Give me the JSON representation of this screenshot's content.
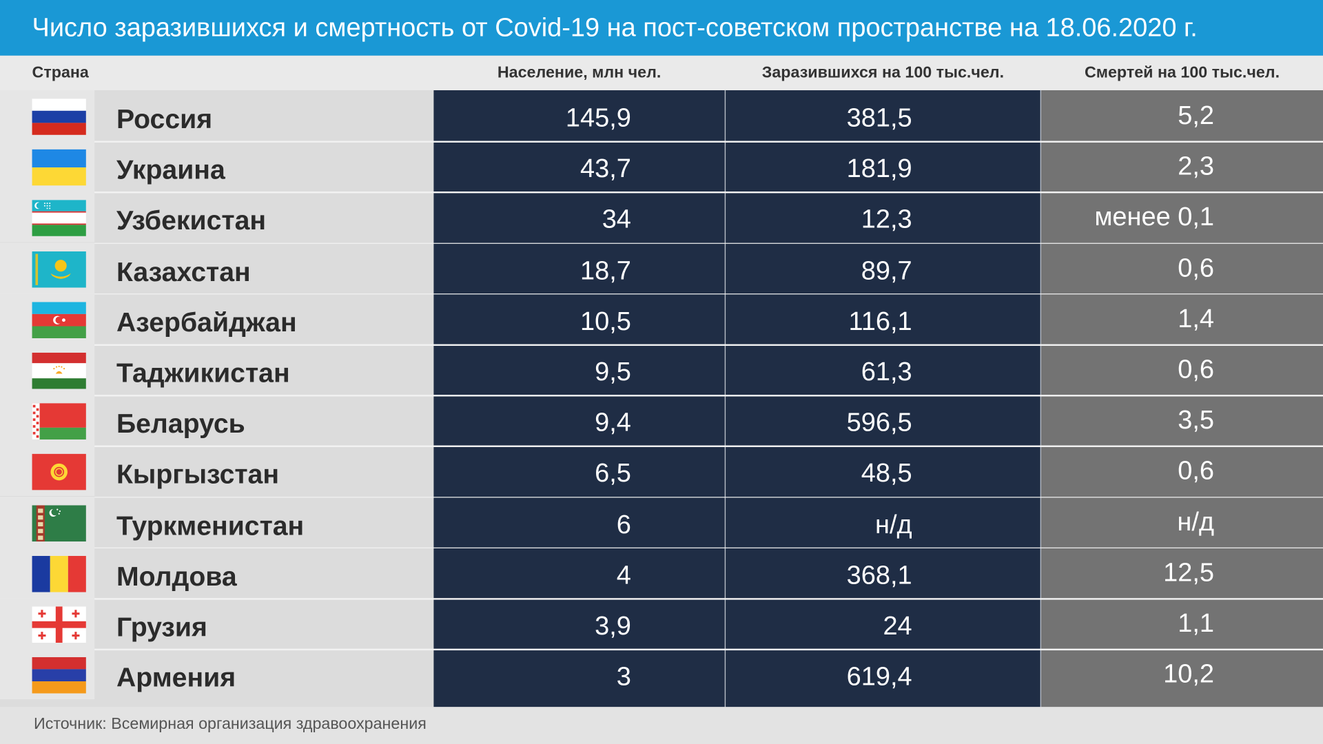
{
  "title": "Число заразившихся и смертность от Covid-19 на пост-советском пространстве на 18.06.2020 г.",
  "source": "Источник: Всемирная организация здравоохранения",
  "chart_data": {
    "type": "table",
    "title": "Число заразившихся и смертность от Covid-19 на пост-советском пространстве на 18.06.2020 г.",
    "columns": [
      "Страна",
      "Население, млн чел.",
      "Заразившихся на 100 тыс.чел.",
      "Смертей на 100 тыс.чел."
    ],
    "rows": [
      {
        "country": "Россия",
        "flag": "russia-flag-icon",
        "population": "145,9",
        "infected": "381,5",
        "deaths": "5,2"
      },
      {
        "country": "Украина",
        "flag": "ukraine-flag-icon",
        "population": "43,7",
        "infected": "181,9",
        "deaths": "2,3"
      },
      {
        "country": "Узбекистан",
        "flag": "uzbekistan-flag-icon",
        "population": "34",
        "infected": "12,3",
        "deaths": "менее 0,1"
      },
      {
        "country": "Казахстан",
        "flag": "kazakhstan-flag-icon",
        "population": "18,7",
        "infected": "89,7",
        "deaths": "0,6"
      },
      {
        "country": "Азербайджан",
        "flag": "azerbaijan-flag-icon",
        "population": "10,5",
        "infected": "116,1",
        "deaths": "1,4"
      },
      {
        "country": "Таджикистан",
        "flag": "tajikistan-flag-icon",
        "population": "9,5",
        "infected": "61,3",
        "deaths": "0,6"
      },
      {
        "country": "Беларусь",
        "flag": "belarus-flag-icon",
        "population": "9,4",
        "infected": "596,5",
        "deaths": "3,5"
      },
      {
        "country": "Кыргызстан",
        "flag": "kyrgyzstan-flag-icon",
        "population": "6,5",
        "infected": "48,5",
        "deaths": "0,6"
      },
      {
        "country": "Туркменистан",
        "flag": "turkmenistan-flag-icon",
        "population": "6",
        "infected": "н/д",
        "deaths": "н/д"
      },
      {
        "country": "Молдова",
        "flag": "moldova-flag-icon",
        "population": "4",
        "infected": "368,1",
        "deaths": "12,5"
      },
      {
        "country": "Грузия",
        "flag": "georgia-flag-icon",
        "population": "3,9",
        "infected": "24",
        "deaths": "1,1"
      },
      {
        "country": "Армения",
        "flag": "armenia-flag-icon",
        "population": "3",
        "infected": "619,4",
        "deaths": "10,2"
      }
    ]
  },
  "colors": {
    "title_bar": "#1a98d5",
    "data_columns": "#1f2d45",
    "deaths_column": "#737373",
    "country_column": "#dcdcdc"
  }
}
